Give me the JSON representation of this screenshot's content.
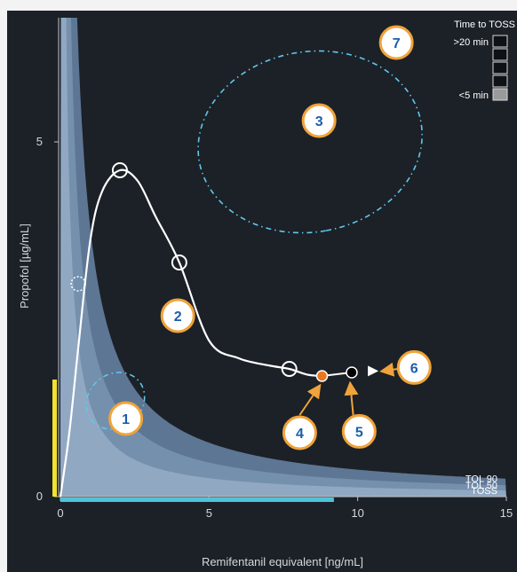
{
  "chart_data": {
    "type": "line",
    "title": "",
    "xlabel": "Remifentanil equivalent [ng/mL]",
    "ylabel": "Propofol [µg/mL]",
    "xlim": [
      0,
      15
    ],
    "ylim": [
      0,
      6.75
    ],
    "x_ticks": [
      0,
      5,
      10,
      15
    ],
    "y_ticks": [
      0,
      5
    ],
    "grid": false,
    "bands": [
      {
        "name": "TOL 90",
        "k": 3.8,
        "color": "#5d7694"
      },
      {
        "name": "TOL 50",
        "k": 2.4,
        "color": "#7590ad"
      },
      {
        "name": "TOSS",
        "k": 1.3,
        "color": "#90a8c2"
      }
    ],
    "series": [
      {
        "name": "",
        "x": [
          0.0,
          0.3,
          0.6,
          1.0,
          1.4,
          2.0,
          2.6,
          3.2,
          4.0,
          5.0,
          6.0,
          7.0,
          7.7,
          8.3,
          8.8
        ],
        "y": [
          0.0,
          0.9,
          2.1,
          3.6,
          4.3,
          4.6,
          4.45,
          3.95,
          3.3,
          2.2,
          1.95,
          1.85,
          1.8,
          1.72,
          1.7
        ],
        "color": "#ffffff"
      }
    ],
    "markers": [
      {
        "name": "past",
        "x": 0.6,
        "y": 3.0,
        "style": "dashed-circle"
      },
      {
        "name": "past",
        "x": 2.0,
        "y": 4.6,
        "style": "circle"
      },
      {
        "name": "past",
        "x": 4.0,
        "y": 3.3,
        "style": "circle"
      },
      {
        "name": "past",
        "x": 7.7,
        "y": 1.8,
        "style": "circle"
      },
      {
        "name": "current",
        "x": 8.8,
        "y": 1.7,
        "style": "dot",
        "color": "#e87722"
      },
      {
        "name": "predicted",
        "x": 9.8,
        "y": 1.75,
        "style": "dot",
        "color": "#000000"
      }
    ],
    "prediction_arrow": {
      "from": [
        9.8,
        1.75
      ],
      "to": [
        10.7,
        1.77
      ]
    },
    "dose_bars": {
      "remifentanil": {
        "from": 0,
        "to": 9.2,
        "color": "#4fc3d9"
      },
      "propofol": {
        "from": 0,
        "to": 1.65,
        "color": "#f2e230"
      }
    },
    "callouts": [
      {
        "label": "1",
        "x": 2.2,
        "y": 1.1
      },
      {
        "label": "2",
        "x": 3.95,
        "y": 2.55
      },
      {
        "label": "3",
        "x": 8.7,
        "y": 5.3
      },
      {
        "label": "4",
        "x": 8.05,
        "y": 0.9
      },
      {
        "label": "5",
        "x": 10.05,
        "y": 0.92
      },
      {
        "label": "6",
        "x": 11.9,
        "y": 1.82
      },
      {
        "label": "7",
        "x": 11.3,
        "y": 6.4
      }
    ],
    "regions": [
      {
        "label": "1",
        "cx": 1.85,
        "cy": 1.35,
        "rx": 1.45,
        "ry": 0.6,
        "rot": 50
      },
      {
        "label": "3",
        "cx": 8.4,
        "cy": 5.0,
        "rx": 4.9,
        "ry": 2.2,
        "rot": 80
      }
    ]
  },
  "legend": {
    "title": "Time to TOSS",
    "top_label": ">20 min",
    "bottom_label": "<5 min",
    "swatches": [
      "#0e1216",
      "#0e1216",
      "#0e1216",
      "#0e1216",
      "#9a9a9a"
    ]
  },
  "colors": {
    "background": "#1c2127",
    "axis": "#bfc3c7",
    "callout_fill": "#ffffff",
    "callout_ring": "#f0a33a",
    "callout_text": "#1c5ea8",
    "dashed_outline": "#5fc8ec",
    "pointer_arrow": "#f0a33a"
  }
}
